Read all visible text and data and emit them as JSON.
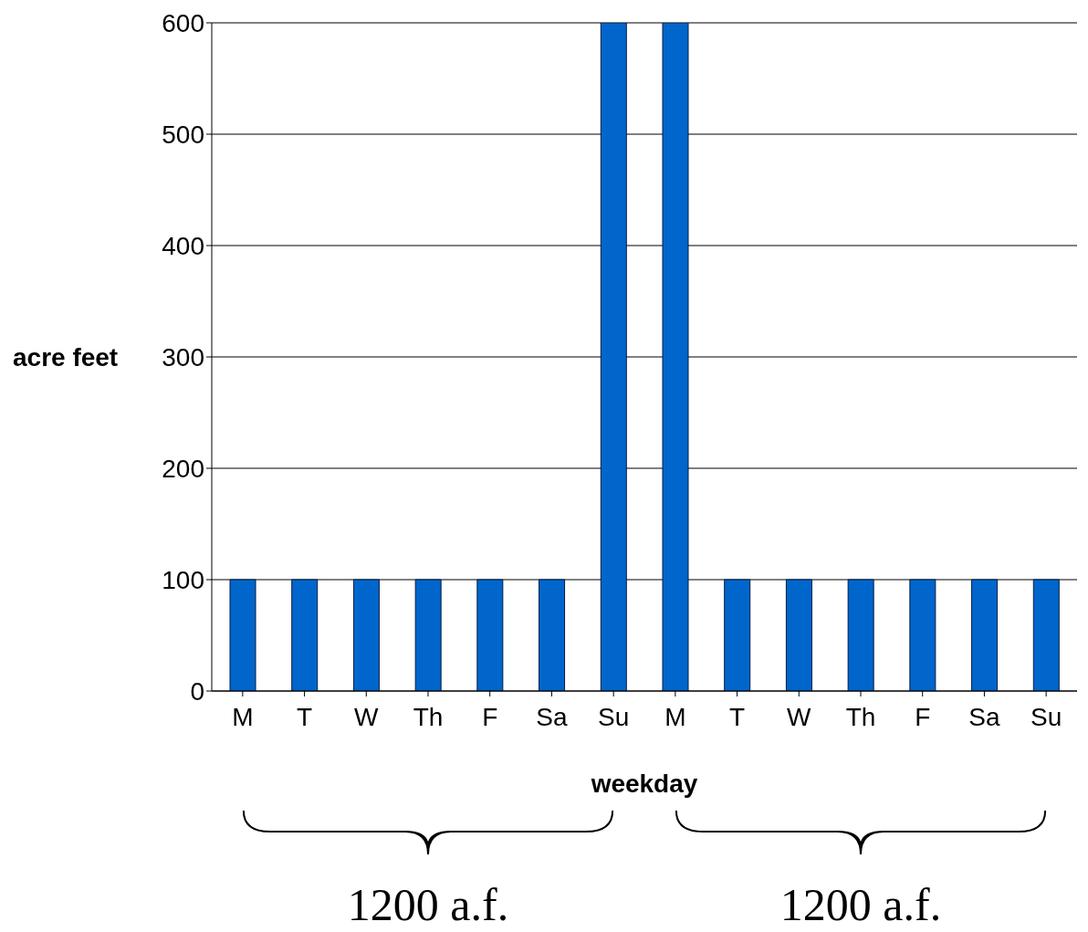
{
  "chart_data": {
    "type": "bar",
    "xlabel": "weekday",
    "ylabel": "acre feet",
    "categories": [
      "M",
      "T",
      "W",
      "Th",
      "F",
      "Sa",
      "Su",
      "M",
      "T",
      "W",
      "Th",
      "F",
      "Sa",
      "Su"
    ],
    "values": [
      100,
      100,
      100,
      100,
      100,
      100,
      600,
      600,
      100,
      100,
      100,
      100,
      100,
      100
    ],
    "color": "#0066cc",
    "ylim": [
      0,
      600
    ],
    "yticks": [
      0,
      100,
      200,
      300,
      400,
      500,
      600
    ],
    "grid": "y",
    "annotations": [
      "1200 a.f.",
      "1200 a.f."
    ]
  }
}
